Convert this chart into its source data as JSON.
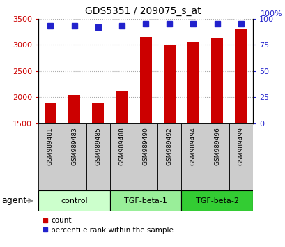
{
  "title": "GDS5351 / 209075_s_at",
  "samples": [
    "GSM989481",
    "GSM989483",
    "GSM989485",
    "GSM989488",
    "GSM989490",
    "GSM989492",
    "GSM989494",
    "GSM989496",
    "GSM989499"
  ],
  "counts": [
    1880,
    2040,
    1880,
    2110,
    3150,
    3000,
    3060,
    3120,
    3310
  ],
  "percentiles": [
    93,
    93,
    92,
    93,
    95,
    95,
    95,
    95,
    95
  ],
  "ylim_left": [
    1500,
    3500
  ],
  "ylim_right": [
    0,
    100
  ],
  "yticks_left": [
    1500,
    2000,
    2500,
    3000,
    3500
  ],
  "yticks_right": [
    0,
    25,
    50,
    75,
    100
  ],
  "bar_color": "#cc0000",
  "dot_color": "#2222cc",
  "groups": [
    {
      "label": "control",
      "indices": [
        0,
        1,
        2
      ],
      "color": "#ccffcc"
    },
    {
      "label": "TGF-beta-1",
      "indices": [
        3,
        4,
        5
      ],
      "color": "#99ee99"
    },
    {
      "label": "TGF-beta-2",
      "indices": [
        6,
        7,
        8
      ],
      "color": "#33cc33"
    }
  ],
  "agent_label": "agent",
  "legend_count_label": "count",
  "legend_percentile_label": "percentile rank within the sample",
  "grid_color": "#aaaaaa",
  "bar_width": 0.5,
  "dot_size": 6,
  "sample_box_color": "#cccccc",
  "right_axis_label": "100%"
}
